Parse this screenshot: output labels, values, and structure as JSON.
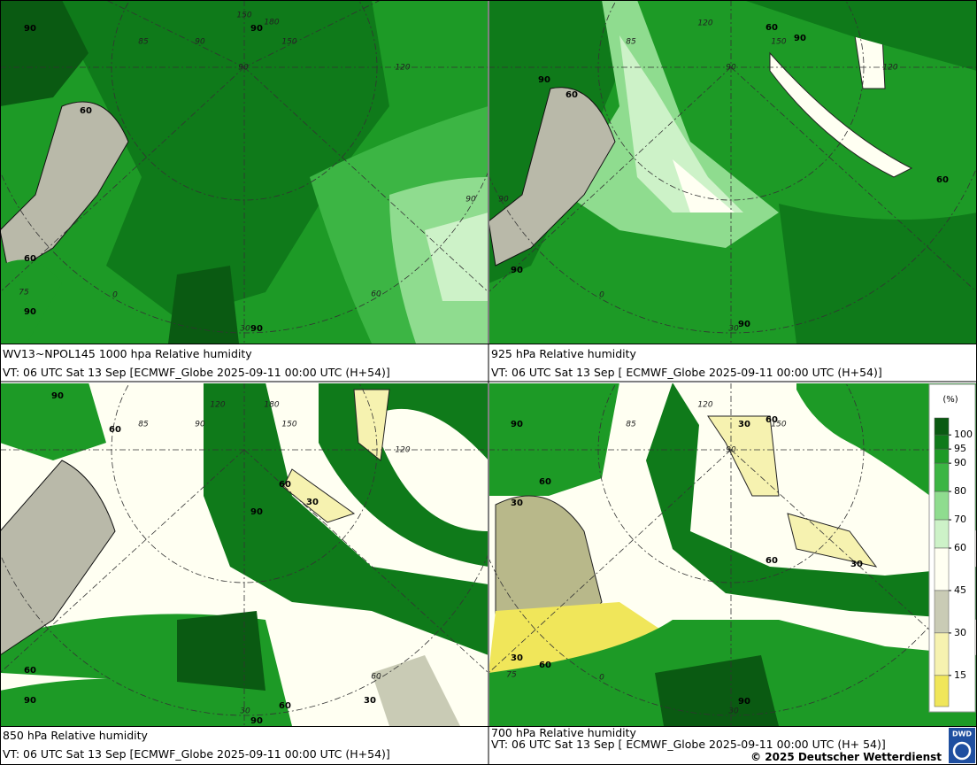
{
  "panels": [
    {
      "title": "WV13~NPOL145 1000 hpa Relative humidity",
      "valid": "VT: 06 UTC Sat  13 Sep [ECMWF_Globe 2025-09-11 00:00 UTC  (H+54)]",
      "contour_labels": [
        "90",
        "90",
        "60",
        "60",
        "90",
        "90"
      ],
      "grid_labels": [
        "150",
        "180",
        "85",
        "90",
        "150",
        "120",
        "90",
        "60",
        "75",
        "0",
        "30",
        "90"
      ]
    },
    {
      "title": "925 hPa Relative humidity",
      "valid": "VT: 06 UTC Sat  13 Sep [ ECMWF_Globe 2025-09-11 00:00 UTC  (H+54)]",
      "contour_labels": [
        "60",
        "90",
        "60",
        "90",
        "60",
        "90",
        "90"
      ],
      "grid_labels": [
        "85",
        "120",
        "150",
        "90",
        "120",
        "90",
        "0",
        "30"
      ]
    },
    {
      "title": "850 hPa  Relative humidity",
      "valid": "VT: 06 UTC Sat  13 Sep [ECMWF_Globe 2025-09-11 00:00 UTC  (H+54)]",
      "contour_labels": [
        "90",
        "60",
        "60",
        "30",
        "90",
        "60",
        "90",
        "60",
        "30",
        "90"
      ],
      "grid_labels": [
        "120",
        "180",
        "150",
        "90",
        "85",
        "60",
        "30",
        "120"
      ]
    },
    {
      "title": "700 hPa Relative humidity",
      "valid": "VT: 06 UTC Sat  13 Sep [ ECMWF_Globe 2025-09-11 00:00 UTC  (H+ 54)]",
      "contour_labels": [
        "90",
        "30",
        "60",
        "60",
        "30",
        "60",
        "30",
        "30",
        "60",
        "90"
      ],
      "grid_labels": [
        "85",
        "120",
        "150",
        "90",
        "75",
        "0",
        "30"
      ]
    }
  ],
  "legend": {
    "unit": "(%)",
    "ylim": [
      4,
      106
    ],
    "levels": [
      100,
      95,
      90,
      80,
      70,
      60,
      45,
      30,
      15
    ],
    "colors": [
      "#0a5a12",
      "#0f7a1a",
      "#1d9a26",
      "#3cb544",
      "#8fdc8f",
      "#cdf2c8",
      "#fffff2",
      "#c9cbb5",
      "#f6f2b0",
      "#f0e65a"
    ]
  },
  "copyright": "© 2025 Deutscher Wetterdienst",
  "logo": "DWD"
}
